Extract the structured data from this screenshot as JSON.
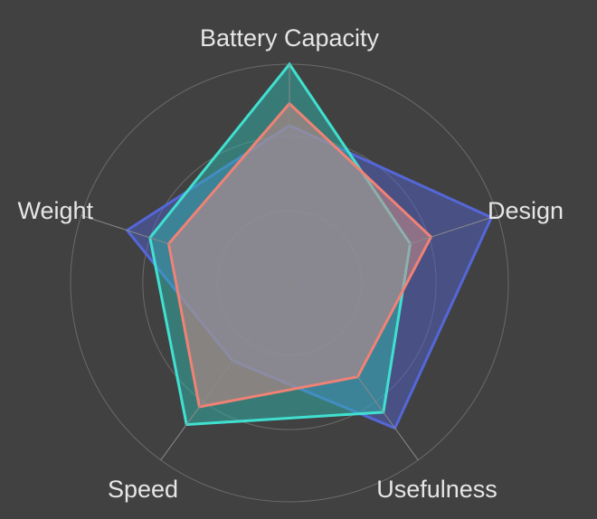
{
  "chart_data": {
    "type": "radar",
    "axes": [
      "Battery Capacity",
      "Design",
      "Usefulness",
      "Speed",
      "Weight"
    ],
    "rlim": [
      0,
      100
    ],
    "grid": true,
    "grid_levels": [
      0.33,
      0.67,
      1.0
    ],
    "legend": "none",
    "series": [
      {
        "values": [
          72,
          97,
          82,
          44,
          78
        ],
        "stroke_color": "#5567d8",
        "fill_color": "#4f5fc8"
      },
      {
        "values": [
          100,
          58,
          73,
          80,
          67
        ],
        "stroke_color": "#40e0d0",
        "fill_color": "#2fb5ab"
      },
      {
        "values": [
          82,
          68,
          53,
          70,
          58
        ],
        "stroke_color": "#f08275",
        "fill_color": "#c98a8a"
      }
    ],
    "background_color": "#414141"
  }
}
